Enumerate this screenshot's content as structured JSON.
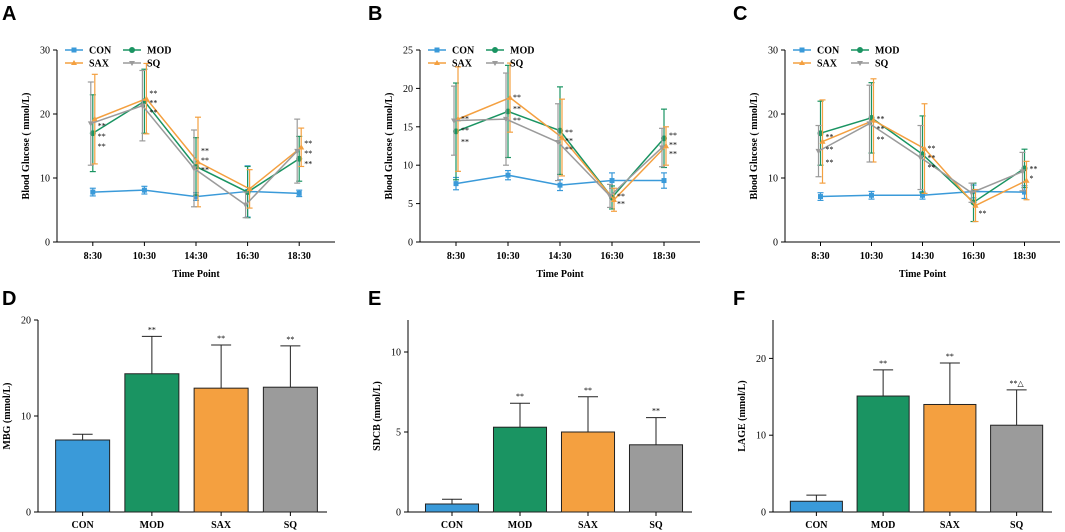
{
  "colors": {
    "CON": "#3a9ad9",
    "MOD": "#1a9462",
    "SAX": "#f4a040",
    "SQ": "#9b9b9b"
  },
  "chart_data": [
    {
      "panel": "A",
      "type": "line",
      "xlabel": "Time Point",
      "ylabel": "Blood Glucose ( mmol/L)",
      "ylim": [
        0,
        30
      ],
      "yticks": [
        0,
        10,
        20,
        30
      ],
      "x": [
        "8:30",
        "10:30",
        "14:30",
        "16:30",
        "18:30"
      ],
      "series": [
        {
          "name": "CON",
          "values": [
            7.8,
            8.1,
            7.1,
            7.9,
            7.6
          ],
          "err": [
            0.6,
            0.6,
            0.6,
            4.0,
            0.5
          ]
        },
        {
          "name": "MOD",
          "values": [
            17.0,
            22.0,
            11.8,
            7.8,
            13.0
          ],
          "err": [
            6.0,
            5.0,
            4.5,
            4.0,
            3.5
          ]
        },
        {
          "name": "SAX",
          "values": [
            19.2,
            22.4,
            12.5,
            8.3,
            14.8
          ],
          "err": [
            7.0,
            5.5,
            7.0,
            3.0,
            3.0
          ]
        },
        {
          "name": "SQ",
          "values": [
            18.5,
            21.3,
            11.5,
            5.8,
            14.2
          ],
          "err": [
            6.5,
            5.5,
            6.0,
            2.0,
            5.0
          ]
        }
      ],
      "annotations": [
        {
          "x": "8:30",
          "y": 18.2,
          "text": "**"
        },
        {
          "x": "8:30",
          "y": 16.6,
          "text": "**"
        },
        {
          "x": "8:30",
          "y": 15.0,
          "text": "**"
        },
        {
          "x": "10:30",
          "y": 23.3,
          "text": "**"
        },
        {
          "x": "10:30",
          "y": 21.8,
          "text": "**"
        },
        {
          "x": "10:30",
          "y": 20.3,
          "text": "**"
        },
        {
          "x": "14:30",
          "y": 14.3,
          "text": "**"
        },
        {
          "x": "14:30",
          "y": 12.8,
          "text": "**"
        },
        {
          "x": "14:30",
          "y": 11.3,
          "text": "**"
        },
        {
          "x": "18:30",
          "y": 15.5,
          "text": "**"
        },
        {
          "x": "18:30",
          "y": 13.9,
          "text": "**"
        },
        {
          "x": "18:30",
          "y": 12.3,
          "text": "**"
        }
      ]
    },
    {
      "panel": "B",
      "type": "line",
      "xlabel": "Time Point",
      "ylabel": "Blood Glucose ( mmol/L)",
      "ylim": [
        0,
        25
      ],
      "yticks": [
        0,
        5,
        10,
        15,
        20,
        25
      ],
      "x": [
        "8:30",
        "10:30",
        "14:30",
        "16:30",
        "18:30"
      ],
      "series": [
        {
          "name": "CON",
          "values": [
            7.6,
            8.7,
            7.4,
            8.0,
            8.0
          ],
          "err": [
            0.8,
            0.6,
            0.7,
            1.0,
            1.0
          ]
        },
        {
          "name": "MOD",
          "values": [
            14.4,
            17.0,
            14.5,
            5.8,
            13.5
          ],
          "err": [
            6.3,
            6.0,
            5.7,
            1.5,
            3.8
          ]
        },
        {
          "name": "SAX",
          "values": [
            16.0,
            18.8,
            13.6,
            5.5,
            12.5
          ],
          "err": [
            6.8,
            4.5,
            5.0,
            1.5,
            2.5
          ]
        },
        {
          "name": "SQ",
          "values": [
            15.8,
            16.0,
            13.0,
            6.0,
            12.3
          ],
          "err": [
            4.5,
            6.0,
            5.0,
            1.5,
            2.5
          ]
        }
      ],
      "annotations": [
        {
          "x": "8:30",
          "y": 16.1,
          "text": "**"
        },
        {
          "x": "8:30",
          "y": 14.6,
          "text": "**"
        },
        {
          "x": "8:30",
          "y": 13.1,
          "text": "**"
        },
        {
          "x": "10:30",
          "y": 18.9,
          "text": "**"
        },
        {
          "x": "10:30",
          "y": 17.4,
          "text": "**"
        },
        {
          "x": "10:30",
          "y": 15.9,
          "text": "**"
        },
        {
          "x": "14:30",
          "y": 14.3,
          "text": "**"
        },
        {
          "x": "14:30",
          "y": 13.2,
          "text": "**"
        },
        {
          "x": "14:30",
          "y": 12.1,
          "text": "**"
        },
        {
          "x": "16:30",
          "y": 6.0,
          "text": "**"
        },
        {
          "x": "16:30",
          "y": 5.0,
          "text": "**"
        },
        {
          "x": "18:30",
          "y": 13.9,
          "text": "**"
        },
        {
          "x": "18:30",
          "y": 12.7,
          "text": "**"
        },
        {
          "x": "18:30",
          "y": 11.5,
          "text": "**"
        }
      ]
    },
    {
      "panel": "C",
      "type": "line",
      "xlabel": "Time Point",
      "ylabel": "Blood Glucose ( mmol/L)",
      "ylim": [
        0,
        30
      ],
      "yticks": [
        0,
        10,
        20,
        30
      ],
      "x": [
        "8:30",
        "10:30",
        "14:30",
        "16:30",
        "18:30"
      ],
      "series": [
        {
          "name": "CON",
          "values": [
            7.1,
            7.3,
            7.3,
            7.9,
            7.8
          ],
          "err": [
            0.6,
            0.6,
            0.6,
            1.0,
            1.0
          ]
        },
        {
          "name": "MOD",
          "values": [
            17.0,
            19.4,
            13.7,
            6.2,
            11.5
          ],
          "err": [
            5.0,
            5.5,
            6.0,
            3.0,
            3.0
          ]
        },
        {
          "name": "SAX",
          "values": [
            15.7,
            19.0,
            14.6,
            5.7,
            9.6
          ],
          "err": [
            6.5,
            6.5,
            7.0,
            2.5,
            3.0
          ]
        },
        {
          "name": "SQ",
          "values": [
            14.2,
            18.5,
            13.2,
            7.7,
            11.0
          ],
          "err": [
            4.0,
            6.0,
            5.0,
            1.5,
            3.0
          ]
        }
      ],
      "annotations": [
        {
          "x": "8:30",
          "y": 16.5,
          "text": "**"
        },
        {
          "x": "8:30",
          "y": 14.5,
          "text": "**"
        },
        {
          "x": "8:30",
          "y": 12.5,
          "text": "**"
        },
        {
          "x": "10:30",
          "y": 19.3,
          "text": "**"
        },
        {
          "x": "10:30",
          "y": 17.7,
          "text": "**"
        },
        {
          "x": "10:30",
          "y": 16.1,
          "text": "**"
        },
        {
          "x": "14:30",
          "y": 14.7,
          "text": "**"
        },
        {
          "x": "14:30",
          "y": 13.2,
          "text": "**"
        },
        {
          "x": "14:30",
          "y": 11.7,
          "text": "**"
        },
        {
          "x": "16:30",
          "y": 4.5,
          "text": "**"
        },
        {
          "x": "18:30",
          "y": 11.5,
          "text": "**"
        },
        {
          "x": "18:30",
          "y": 10.0,
          "text": "*"
        }
      ]
    },
    {
      "panel": "D",
      "type": "bar",
      "ylabel": "MBG (mmol/L)",
      "ylim": [
        0,
        20
      ],
      "yticks": [
        0,
        10,
        20
      ],
      "categories": [
        "CON",
        "MOD",
        "SAX",
        "SQ"
      ],
      "values": [
        7.5,
        14.4,
        12.9,
        13.0
      ],
      "err": [
        0.6,
        3.9,
        4.5,
        4.3
      ],
      "labels": [
        "",
        "**",
        "**",
        "**"
      ]
    },
    {
      "panel": "E",
      "type": "bar",
      "ylabel": "SDCB (mmol/L)",
      "ylim": [
        0,
        12
      ],
      "yticks": [
        0,
        5,
        10
      ],
      "categories": [
        "CON",
        "MOD",
        "SAX",
        "SQ"
      ],
      "values": [
        0.5,
        5.3,
        5.0,
        4.2
      ],
      "err": [
        0.3,
        1.5,
        2.2,
        1.7
      ],
      "labels": [
        "",
        "**",
        "**",
        "**"
      ]
    },
    {
      "panel": "F",
      "type": "bar",
      "ylabel": "LAGE (mmol/L)",
      "ylim": [
        0,
        25
      ],
      "yticks": [
        0,
        10,
        20
      ],
      "categories": [
        "CON",
        "MOD",
        "SAX",
        "SQ"
      ],
      "values": [
        1.4,
        15.1,
        14.0,
        11.3
      ],
      "err": [
        0.8,
        3.4,
        5.4,
        4.6
      ],
      "labels": [
        "",
        "**",
        "**",
        "**△"
      ]
    }
  ]
}
